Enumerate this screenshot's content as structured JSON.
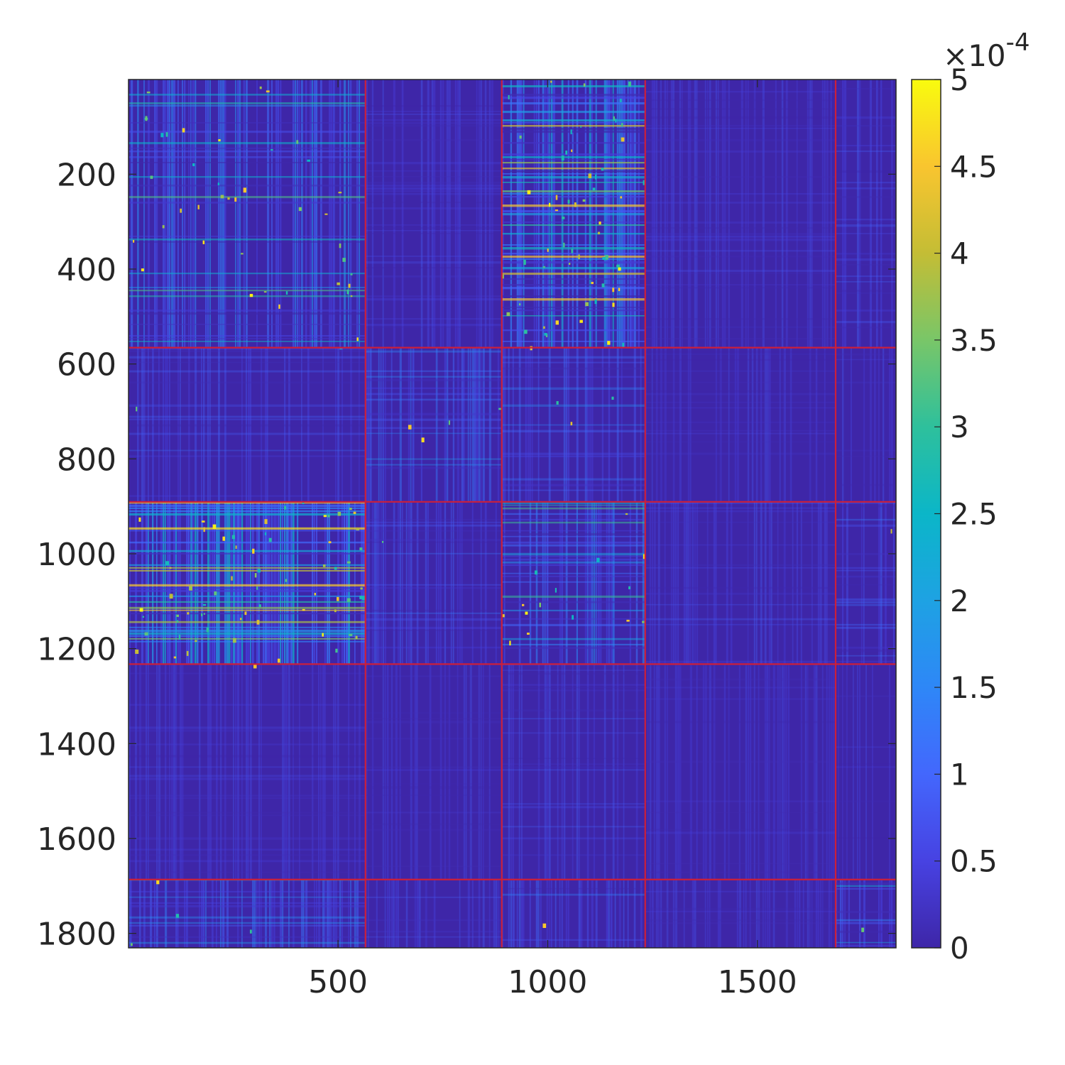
{
  "chart_data": {
    "type": "heatmap",
    "title": "",
    "xlabel": "",
    "ylabel": "",
    "matrix_size": 1830,
    "xlim": [
      0.5,
      1830.5
    ],
    "ylim": [
      0.5,
      1830.5
    ],
    "y_reversed": true,
    "x_ticks": [
      500,
      1000,
      1500
    ],
    "x_tick_labels": [
      "500",
      "1000",
      "1500"
    ],
    "y_ticks": [
      200,
      400,
      600,
      800,
      1000,
      1200,
      1400,
      1600,
      1800
    ],
    "y_tick_labels": [
      "200",
      "400",
      "600",
      "800",
      "1000",
      "1200",
      "1400",
      "1600",
      "1800"
    ],
    "color_limits": [
      0,
      0.0005
    ],
    "colormap": "parula",
    "colorbar": {
      "location": "right",
      "ticks": [
        0,
        0.5,
        1,
        1.5,
        2,
        2.5,
        3,
        3.5,
        4,
        4.5,
        5
      ],
      "tick_labels": [
        "0",
        "0.5",
        "1",
        "1.5",
        "2",
        "2.5",
        "3",
        "3.5",
        "4",
        "4.5",
        "5"
      ],
      "exponent_prefix": "×10",
      "exponent_power": "-4"
    },
    "block_boundaries": [
      565,
      890,
      1232,
      1686
    ],
    "boundary_color": "#cc1f3a",
    "blocks": [
      {
        "row": 0,
        "col": 0,
        "level": 0.55
      },
      {
        "row": 0,
        "col": 1,
        "level": 0.1
      },
      {
        "row": 0,
        "col": 2,
        "level": 0.85
      },
      {
        "row": 0,
        "col": 3,
        "level": 0.05
      },
      {
        "row": 0,
        "col": 4,
        "level": 0.15
      },
      {
        "row": 1,
        "col": 0,
        "level": 0.15
      },
      {
        "row": 1,
        "col": 1,
        "level": 0.3
      },
      {
        "row": 1,
        "col": 2,
        "level": 0.25
      },
      {
        "row": 1,
        "col": 3,
        "level": 0.03
      },
      {
        "row": 1,
        "col": 4,
        "level": 0.05
      },
      {
        "row": 2,
        "col": 0,
        "level": 0.9
      },
      {
        "row": 2,
        "col": 1,
        "level": 0.2
      },
      {
        "row": 2,
        "col": 2,
        "level": 0.55
      },
      {
        "row": 2,
        "col": 3,
        "level": 0.12
      },
      {
        "row": 2,
        "col": 4,
        "level": 0.25
      },
      {
        "row": 3,
        "col": 0,
        "level": 0.05
      },
      {
        "row": 3,
        "col": 1,
        "level": 0.02
      },
      {
        "row": 3,
        "col": 2,
        "level": 0.12
      },
      {
        "row": 3,
        "col": 3,
        "level": 0.02
      },
      {
        "row": 3,
        "col": 4,
        "level": 0.03
      },
      {
        "row": 4,
        "col": 0,
        "level": 0.35
      },
      {
        "row": 4,
        "col": 1,
        "level": 0.08
      },
      {
        "row": 4,
        "col": 2,
        "level": 0.25
      },
      {
        "row": 4,
        "col": 3,
        "level": 0.04
      },
      {
        "row": 4,
        "col": 4,
        "level": 0.45
      }
    ],
    "grid": false,
    "legend": "none"
  },
  "colors": {
    "background": "#3e26a8",
    "yellow": "#f9fb0e",
    "boundary": "#cc1f3a",
    "axis": "#262626"
  }
}
